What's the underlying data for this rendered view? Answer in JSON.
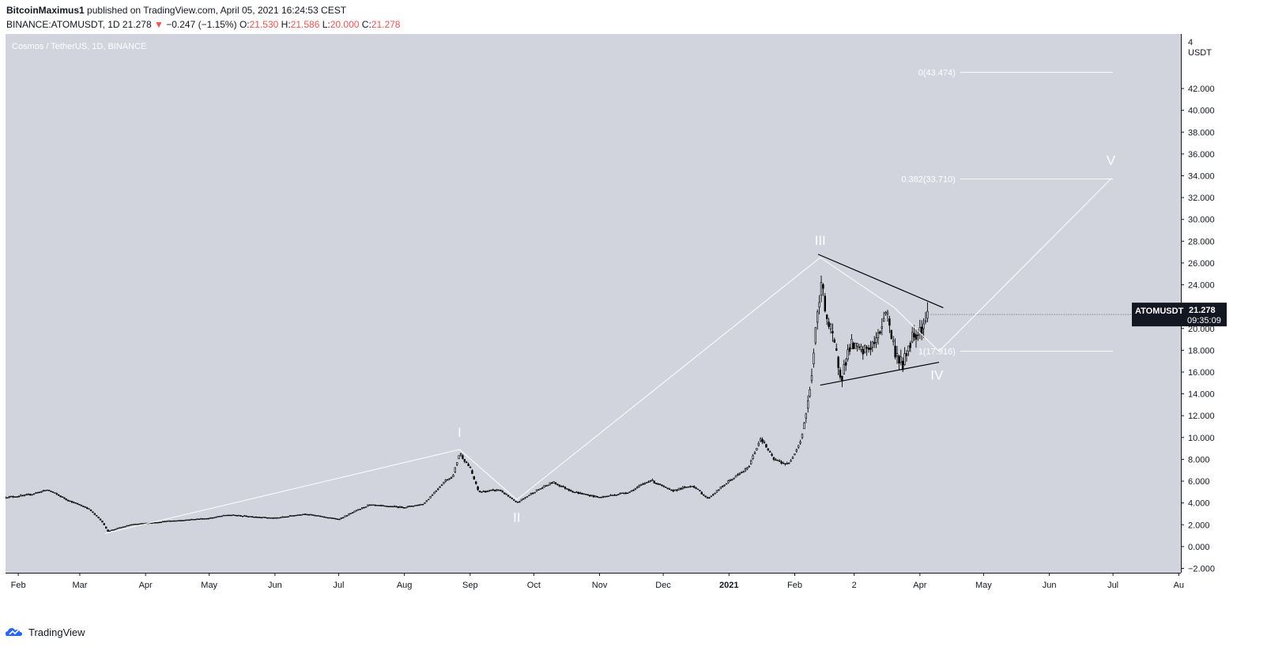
{
  "header": {
    "author": "BitcoinMaximus1",
    "published": "published on TradingView.com, April 05, 2021 16:24:53 CEST",
    "symbol": "BINANCE:ATOMUSDT, 1D",
    "last": "21.278",
    "change_arrow": "▼",
    "change": "−0.247 (−1.15%)",
    "o_label": "O:",
    "o_value": "21.530",
    "h_label": "H:",
    "h_value": "21.586",
    "l_label": "L:",
    "l_value": "20.000",
    "c_label": "C:",
    "c_value": "21.278"
  },
  "chart_title": "Cosmos / TetherUS, 1D, BINANCE",
  "footer": {
    "brand": "TradingView"
  },
  "price_tag": {
    "symbol": "ATOMUSDT",
    "price": "21.278",
    "countdown": "09:35:09"
  },
  "colors": {
    "background": "#d1d4dc",
    "candle": "#000000",
    "wave_line": "#ffffff",
    "price_down": "#ef5350",
    "tag_bg": "#131722",
    "brand_blue": "#2962ff"
  },
  "chart_data": {
    "type": "candlestick",
    "title": "Cosmos / TetherUS, 1D, BINANCE",
    "y_unit": "USDT",
    "ylim": [
      -2.4,
      47
    ],
    "yticks": [
      "−2.000",
      "0.000",
      "2.000",
      "4.000",
      "6.000",
      "8.000",
      "10.000",
      "12.000",
      "14.000",
      "16.000",
      "18.000",
      "20.000",
      "22.000",
      "24.000",
      "26.000",
      "28.000",
      "30.000",
      "32.000",
      "34.000",
      "36.000",
      "38.000",
      "40.000",
      "42.000"
    ],
    "y_top_label": "4",
    "x_tick_labels": [
      "Feb",
      "Mar",
      "Apr",
      "May",
      "Jun",
      "Jul",
      "Aug",
      "Sep",
      "Oct",
      "Nov",
      "Dec",
      "2021",
      "Feb",
      "2",
      "Apr",
      "May",
      "Jun",
      "Jul",
      "Au"
    ],
    "price_path": [
      [
        "2020-01-25",
        4.5
      ],
      [
        "2020-02-05",
        4.7
      ],
      [
        "2020-02-15",
        5.2
      ],
      [
        "2020-02-25",
        4.2
      ],
      [
        "2020-03-05",
        3.5
      ],
      [
        "2020-03-12",
        2.2
      ],
      [
        "2020-03-14",
        1.4
      ],
      [
        "2020-03-25",
        2.0
      ],
      [
        "2020-04-10",
        2.3
      ],
      [
        "2020-05-01",
        2.6
      ],
      [
        "2020-05-10",
        2.9
      ],
      [
        "2020-06-01",
        2.6
      ],
      [
        "2020-06-15",
        3.0
      ],
      [
        "2020-07-01",
        2.5
      ],
      [
        "2020-07-15",
        3.8
      ],
      [
        "2020-08-01",
        3.6
      ],
      [
        "2020-08-10",
        3.9
      ],
      [
        "2020-08-20",
        6.0
      ],
      [
        "2020-08-24",
        6.5
      ],
      [
        "2020-08-27",
        8.6
      ],
      [
        "2020-09-01",
        7.2
      ],
      [
        "2020-09-05",
        5.0
      ],
      [
        "2020-09-15",
        5.2
      ],
      [
        "2020-09-23",
        4.0
      ],
      [
        "2020-10-01",
        5.0
      ],
      [
        "2020-10-10",
        5.9
      ],
      [
        "2020-10-20",
        5.0
      ],
      [
        "2020-11-01",
        4.5
      ],
      [
        "2020-11-15",
        5.0
      ],
      [
        "2020-11-25",
        6.1
      ],
      [
        "2020-12-05",
        5.1
      ],
      [
        "2020-12-15",
        5.6
      ],
      [
        "2020-12-22",
        4.4
      ],
      [
        "2021-01-01",
        6.0
      ],
      [
        "2021-01-10",
        7.2
      ],
      [
        "2021-01-16",
        10.0
      ],
      [
        "2021-01-22",
        8.0
      ],
      [
        "2021-01-29",
        7.5
      ],
      [
        "2021-02-04",
        9.8
      ],
      [
        "2021-02-08",
        14.0
      ],
      [
        "2021-02-11",
        20.0
      ],
      [
        "2021-02-14",
        24.5
      ],
      [
        "2021-02-16",
        21.0
      ],
      [
        "2021-02-19",
        19.0
      ],
      [
        "2021-02-23",
        15.5
      ],
      [
        "2021-02-27",
        18.5
      ],
      [
        "2021-03-05",
        17.8
      ],
      [
        "2021-03-12",
        18.9
      ],
      [
        "2021-03-16",
        21.9
      ],
      [
        "2021-03-20",
        18.0
      ],
      [
        "2021-03-24",
        16.6
      ],
      [
        "2021-03-28",
        19.2
      ],
      [
        "2021-04-02",
        20.2
      ],
      [
        "2021-04-05",
        21.3
      ]
    ],
    "last_price": 21.278,
    "wave_labels": [
      {
        "label": "I",
        "date": "2020-08-27"
      },
      {
        "label": "II",
        "date": "2020-09-23"
      },
      {
        "label": "III",
        "date": "2021-02-13"
      },
      {
        "label": "IV",
        "date": "2021-04-09"
      },
      {
        "label": "V",
        "date": "2021-06-30"
      }
    ],
    "wave_path": [
      [
        "2020-03-13",
        1.2
      ],
      [
        "2020-08-27",
        8.9
      ],
      [
        "2020-09-23",
        4.3
      ],
      [
        "2021-02-13",
        26.5
      ],
      [
        "2021-03-20",
        21.9
      ],
      [
        "2021-04-10",
        17.9
      ],
      [
        "2021-06-30",
        33.7
      ]
    ],
    "triangle": {
      "upper": [
        [
          "2021-02-12",
          26.8
        ],
        [
          "2021-04-12",
          21.9
        ]
      ],
      "lower": [
        [
          "2021-02-13",
          14.8
        ],
        [
          "2021-04-10",
          16.9
        ]
      ]
    },
    "fib_levels": [
      {
        "label": "0(43.474)",
        "value": 43.474
      },
      {
        "label": "0.382(33.710)",
        "value": 33.71
      },
      {
        "label": "1(17.916)",
        "value": 17.916
      }
    ],
    "grid": false
  }
}
